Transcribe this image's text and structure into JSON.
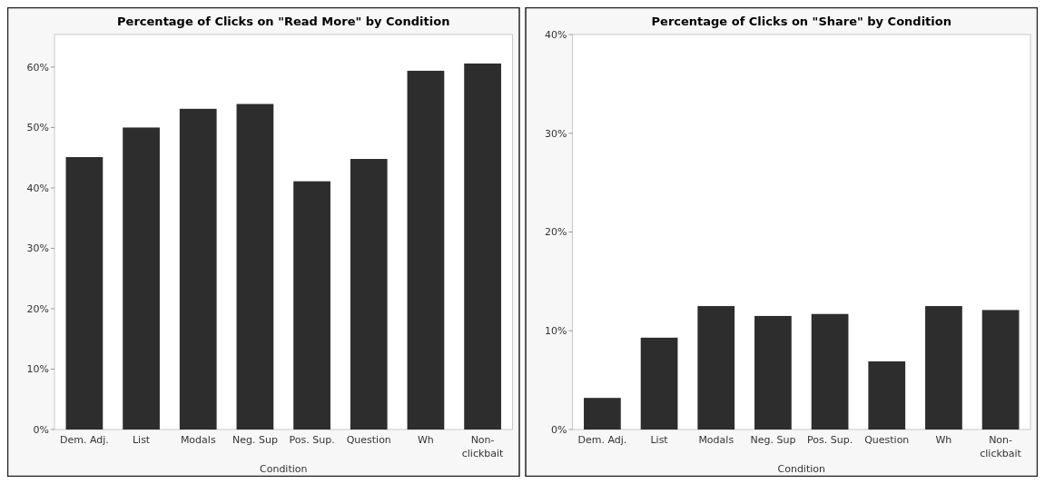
{
  "chart_data": [
    {
      "type": "bar",
      "title": "Percentage of Clicks on \"Read More\" by Condition",
      "xlabel": "Condition",
      "categories": [
        "Dem. Adj.",
        "List",
        "Modals",
        "Neg. Sup",
        "Pos. Sup.",
        "Question",
        "Wh",
        "Non-clickbait"
      ],
      "values": [
        45.1,
        50.0,
        53.1,
        53.9,
        41.1,
        44.8,
        59.4,
        60.6
      ],
      "color": "#2d2d2d",
      "ylim": [
        0,
        65.4
      ],
      "yticks": [
        {
          "value": 0,
          "label": "0%"
        },
        {
          "value": 10,
          "label": "10%"
        },
        {
          "value": 20,
          "label": "20%"
        },
        {
          "value": 30,
          "label": "30%"
        },
        {
          "value": 40,
          "label": "40%"
        },
        {
          "value": 50,
          "label": "50%"
        },
        {
          "value": 60,
          "label": "60%"
        }
      ]
    },
    {
      "type": "bar",
      "title": "Percentage of Clicks on \"Share\" by Condition",
      "xlabel": "Condition",
      "categories": [
        "Dem. Adj.",
        "List",
        "Modals",
        "Neg. Sup",
        "Pos. Sup.",
        "Question",
        "Wh",
        "Non-clickbait"
      ],
      "values": [
        3.2,
        9.3,
        12.5,
        11.5,
        11.7,
        6.9,
        12.5,
        12.1
      ],
      "color": "#2d2d2d",
      "ylim": [
        0,
        40
      ],
      "yticks": [
        {
          "value": 0,
          "label": "0%"
        },
        {
          "value": 10,
          "label": "10%"
        },
        {
          "value": 20,
          "label": "20%"
        },
        {
          "value": 30,
          "label": "30%"
        },
        {
          "value": 40,
          "label": "40%"
        }
      ]
    }
  ]
}
